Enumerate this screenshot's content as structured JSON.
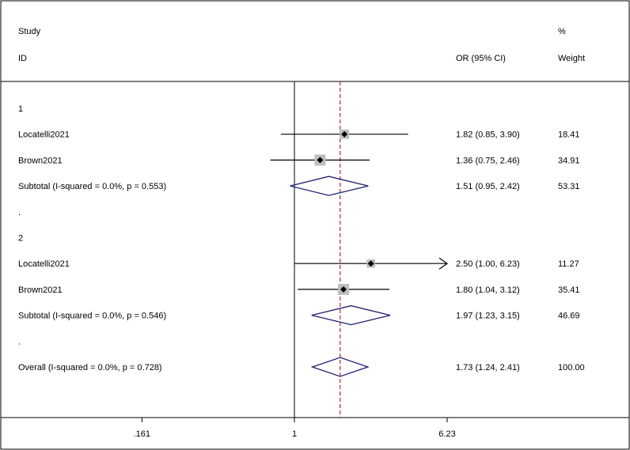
{
  "chart_data": {
    "type": "forest",
    "header": {
      "study_line1": "Study",
      "study_line2": "ID",
      "ci_label": "OR (95% CI)",
      "weight_line1": "%",
      "weight_line2": "Weight"
    },
    "x_scale": "log",
    "x_ticks": [
      {
        "value": 0.161,
        "label": ".161"
      },
      {
        "value": 1,
        "label": "1"
      },
      {
        "value": 6.23,
        "label": "6.23"
      }
    ],
    "null_line": 1,
    "overall_line": 1.73,
    "rows": [
      {
        "kind": "group",
        "label": "1"
      },
      {
        "kind": "study",
        "label": "Locatelli2021",
        "or": 1.82,
        "lower": 0.85,
        "upper": 3.9,
        "ci_text": "1.82 (0.85, 3.90)",
        "weight": 18.41,
        "weight_text": "18.41"
      },
      {
        "kind": "study",
        "label": "Brown2021",
        "or": 1.36,
        "lower": 0.75,
        "upper": 2.46,
        "ci_text": "1.36 (0.75, 2.46)",
        "weight": 34.91,
        "weight_text": "34.91"
      },
      {
        "kind": "subtotal",
        "label": "Subtotal  (I-squared = 0.0%, p = 0.553)",
        "or": 1.51,
        "lower": 0.95,
        "upper": 2.42,
        "ci_text": "1.51 (0.95, 2.42)",
        "weight_text": "53.31"
      },
      {
        "kind": "spacer",
        "label": "."
      },
      {
        "kind": "group",
        "label": "2"
      },
      {
        "kind": "study",
        "label": "Locatelli2021",
        "or": 2.5,
        "lower": 1.0,
        "upper": 6.23,
        "ci_text": "2.50 (1.00, 6.23)",
        "weight": 11.27,
        "weight_text": "11.27",
        "arrow": true
      },
      {
        "kind": "study",
        "label": "Brown2021",
        "or": 1.8,
        "lower": 1.04,
        "upper": 3.12,
        "ci_text": "1.80 (1.04, 3.12)",
        "weight": 35.41,
        "weight_text": "35.41"
      },
      {
        "kind": "subtotal",
        "label": "Subtotal  (I-squared = 0.0%, p = 0.546)",
        "or": 1.97,
        "lower": 1.23,
        "upper": 3.15,
        "ci_text": "1.97 (1.23, 3.15)",
        "weight_text": "46.69"
      },
      {
        "kind": "spacer",
        "label": "."
      },
      {
        "kind": "overall",
        "label": "Overall  (I-squared = 0.0%, p = 0.728)",
        "or": 1.73,
        "lower": 1.24,
        "upper": 2.41,
        "ci_text": "1.73 (1.24, 2.41)",
        "weight_text": "100.00"
      }
    ],
    "colors": {
      "diamond": "#1f1f6e",
      "overall_line": "#a00000",
      "weight_box": "#bdbdbd",
      "frame": "#000000"
    }
  }
}
